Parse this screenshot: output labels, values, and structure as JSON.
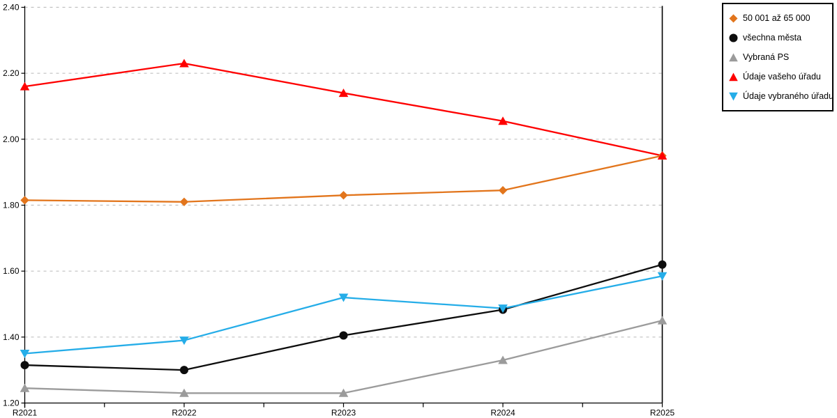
{
  "chart_data": {
    "type": "line",
    "title": "",
    "xlabel": "",
    "ylabel": "",
    "x": [
      "R2021",
      "R2022",
      "R2023",
      "R2024",
      "R2025"
    ],
    "ylim": [
      1.2,
      2.4
    ],
    "ytick_step": 0.2,
    "ytick_labels": [
      "1.20",
      "1.40",
      "1.60",
      "1.80",
      "2.00",
      "2.20",
      "2.40"
    ],
    "grid": "horizontal dashed",
    "legend_position": "outside top-right, boxed",
    "series": [
      {
        "name": "50 001 až 65 000",
        "marker": "diamond",
        "color": "#E2751C",
        "values": [
          1.815,
          1.81,
          1.83,
          1.845,
          1.95
        ]
      },
      {
        "name": "všechna města",
        "marker": "circle",
        "color": "#0D0D0D",
        "values": [
          1.315,
          1.3,
          1.405,
          1.483,
          1.62
        ]
      },
      {
        "name": "Vybraná PS",
        "marker": "triangle-up",
        "color": "#9B9B9B",
        "values": [
          1.245,
          1.23,
          1.23,
          1.33,
          1.45
        ]
      },
      {
        "name": "Údaje vašeho úřadu",
        "marker": "triangle-up",
        "color": "#FE0000",
        "values": [
          2.16,
          2.23,
          2.14,
          2.055,
          1.95
        ]
      },
      {
        "name": "Údaje vybraného úřadu",
        "marker": "triangle-down",
        "color": "#25ADE8",
        "values": [
          1.35,
          1.39,
          1.52,
          1.487,
          1.585
        ]
      }
    ],
    "colors": {
      "axis": "#000000",
      "gridline": "#C0C0C0",
      "background": "#FFFFFF"
    }
  }
}
